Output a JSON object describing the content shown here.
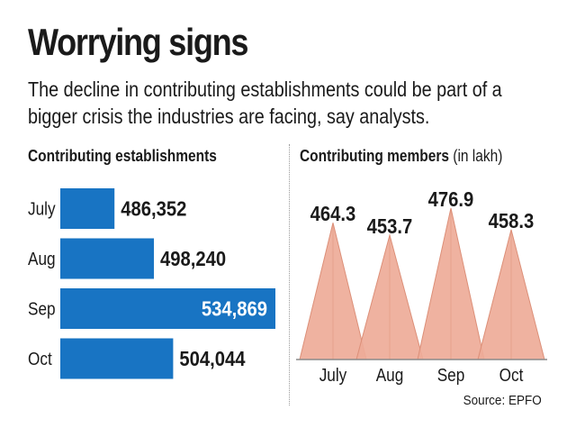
{
  "title": "Worrying signs",
  "subtitle_lines": [
    "The decline in contributing establishments could be part of a",
    "bigger crisis the industries are facing, say analysts."
  ],
  "source": "Source: EPFO",
  "colors": {
    "bar_fill": "#1874c3",
    "triangle_fill": "#eeab98",
    "triangle_edge": "#dc8f78",
    "text": "#1a1a1a",
    "inside_label": "#ffffff"
  },
  "chart_data": [
    {
      "type": "bar",
      "orientation": "horizontal",
      "title": "Contributing establishments",
      "categories": [
        "July",
        "Aug",
        "Sep",
        "Oct"
      ],
      "values": [
        486352,
        498240,
        534869,
        504044
      ],
      "value_labels": [
        "486,352",
        "498,240",
        "534,869",
        "504,044"
      ],
      "label_inside": [
        false,
        false,
        true,
        false
      ],
      "xlim": [
        470000,
        534869
      ]
    },
    {
      "type": "area",
      "style": "triangles",
      "title": "Contributing members",
      "unit_label": "(in lakh)",
      "categories": [
        "July",
        "Aug",
        "Sep",
        "Oct"
      ],
      "values": [
        464.3,
        453.7,
        476.9,
        458.3
      ],
      "value_labels": [
        "464.3",
        "453.7",
        "476.9",
        "458.3"
      ]
    }
  ]
}
